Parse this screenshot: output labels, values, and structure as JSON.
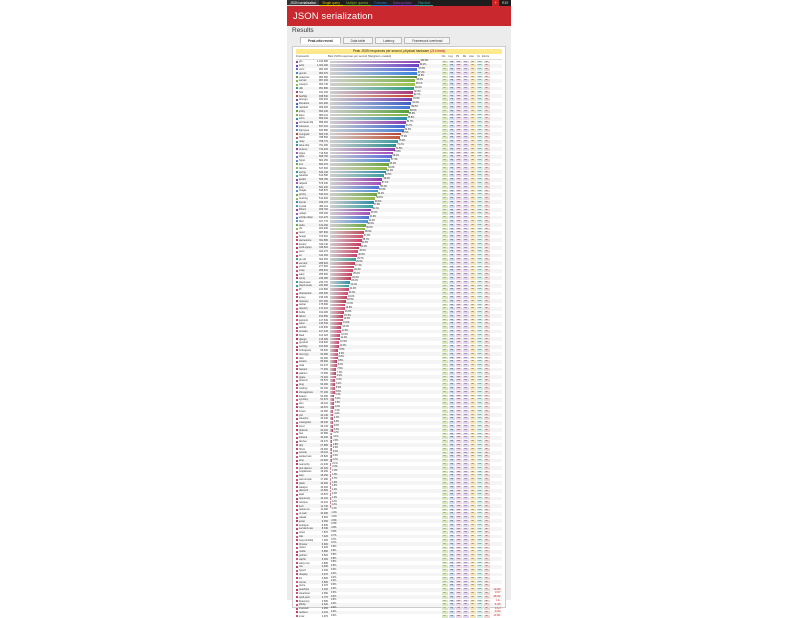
{
  "topnav": {
    "tabs": [
      {
        "label": "JSON serialization",
        "color": "#d7d7d7"
      },
      {
        "label": "Single query",
        "color": "#e0c900"
      },
      {
        "label": "Multiple queries",
        "color": "#82b526"
      },
      {
        "label": "Fortunes",
        "color": "#2e7bcf"
      },
      {
        "label": "Data updates",
        "color": "#8c44c4"
      },
      {
        "label": "Plaintext",
        "color": "#2d9c93"
      }
    ],
    "right_icon": "plus-icon",
    "right_text": "R19"
  },
  "header": {
    "title": "JSON serialization"
  },
  "results_title": "Results",
  "tabs": [
    {
      "label": "Peak-ntto reveal"
    },
    {
      "label": "Data table"
    },
    {
      "label": "Latency"
    },
    {
      "label": "Framework overhead"
    }
  ],
  "subtitle": "Peak JSON responses per second, physical hardware",
  "subtitle_note": "(214 tests)",
  "columns": [
    "Framework",
    "Best JSON responses per second (Weighted + loaded)",
    "Cls",
    "Lng",
    "Plt",
    "FE",
    "Aos",
    "IA",
    "Errors"
  ],
  "colors": {
    "header": "#c8282e",
    "nav": "#1d1d1d"
  },
  "chart_data": {
    "type": "bar",
    "title": "Peak JSON responses per second, physical hardware",
    "ylabel": "Best JSON responses per second",
    "series_name": "responses per second",
    "rows": [
      {
        "name": "gin",
        "value": 1012690,
        "pct": "100.0%",
        "color": "#8b3fb5"
      },
      {
        "name": "actix",
        "value": 1004290,
        "pct": "99.2%",
        "color": "#6a42c6"
      },
      {
        "name": "vertx",
        "value": 990180,
        "pct": "97.8%",
        "color": "#4c6be0"
      },
      {
        "name": "gemini",
        "value": 984570,
        "pct": "97.2%",
        "color": "#3b82dd"
      },
      {
        "name": "undertow",
        "value": 980380,
        "pct": "96.8%",
        "color": "#5e8f3b"
      },
      {
        "name": "servlet",
        "value": 967200,
        "pct": "95.5%",
        "color": "#7fb441"
      },
      {
        "name": "cutelyst",
        "value": 962740,
        "pct": "95.1%",
        "color": "#9ac14a"
      },
      {
        "name": "ulib",
        "value": 951880,
        "pct": "94.0%",
        "color": "#2f9e84"
      },
      {
        "name": "h2o",
        "value": 941160,
        "pct": "92.9%",
        "color": "#a83a7a"
      },
      {
        "name": "fasthttp",
        "value": 938530,
        "pct": "92.7%",
        "color": "#c3412f"
      },
      {
        "name": "atreugo",
        "value": 930400,
        "pct": "91.9%",
        "color": "#7b42b4"
      },
      {
        "name": "libreactor",
        "value": 921280,
        "pct": "91.0%",
        "color": "#3f5fc6"
      },
      {
        "name": "rapidoid",
        "value": 909480,
        "pct": "89.8%",
        "color": "#4176d4"
      },
      {
        "name": "jooby",
        "value": 894230,
        "pct": "88.3%",
        "color": "#5c9f3a"
      },
      {
        "name": "kami",
        "value": 880110,
        "pct": "86.9%",
        "color": "#7db141"
      },
      {
        "name": "echo",
        "value": 869040,
        "pct": "85.8%",
        "color": "#2c8fa8"
      },
      {
        "name": "wizzardo-http",
        "value": 858090,
        "pct": "84.7%",
        "color": "#8a3fb3"
      },
      {
        "name": "colossus",
        "value": 847310,
        "pct": "83.7%",
        "color": "#3c67d1"
      },
      {
        "name": "light-java",
        "value": 833880,
        "pct": "82.3%",
        "color": "#4a82da"
      },
      {
        "name": "mongrel2",
        "value": 805130,
        "pct": "79.5%",
        "color": "#b84333"
      },
      {
        "name": "blaze",
        "value": 788560,
        "pct": "77.9%",
        "color": "#c2573a"
      },
      {
        "name": "netty",
        "value": 768770,
        "pct": "75.9%",
        "color": "#3f9ba0"
      },
      {
        "name": "akka-http",
        "value": 751090,
        "pct": "74.2%",
        "color": "#2e8e90"
      },
      {
        "name": "proteus",
        "value": 734220,
        "pct": "72.5%",
        "color": "#8e3fb2"
      },
      {
        "name": "pippo",
        "value": 716540,
        "pct": "70.8%",
        "color": "#a24ab8"
      },
      {
        "name": "tokio",
        "value": 698760,
        "pct": "69.0%",
        "color": "#5b6bd8"
      },
      {
        "name": "hyper",
        "value": 681250,
        "pct": "67.3%",
        "color": "#4d89d6"
      },
      {
        "name": "iron",
        "value": 664070,
        "pct": "65.6%",
        "color": "#6fa43f"
      },
      {
        "name": "falcore",
        "value": 647900,
        "pct": "64.0%",
        "color": "#8fb847"
      },
      {
        "name": "spring",
        "value": 630140,
        "pct": "62.2%",
        "color": "#2b8ca6"
      },
      {
        "name": "baratine",
        "value": 612580,
        "pct": "60.5%",
        "color": "#3b9fa0"
      },
      {
        "name": "javalin",
        "value": 595780,
        "pct": "58.8%",
        "color": "#8f3caf"
      },
      {
        "name": "ratpack",
        "value": 578030,
        "pct": "57.1%",
        "color": "#a34fb9"
      },
      {
        "name": "jetty",
        "value": 561220,
        "pct": "55.4%",
        "color": "#4c72d5"
      },
      {
        "name": "finagle",
        "value": 545870,
        "pct": "53.9%",
        "color": "#4a8fd6"
      },
      {
        "name": "grizzly",
        "value": 530410,
        "pct": "52.4%",
        "color": "#6ea63f"
      },
      {
        "name": "treefrog",
        "value": 514600,
        "pct": "50.8%",
        "color": "#8dba47"
      },
      {
        "name": "kemal",
        "value": 499270,
        "pct": "49.3%",
        "color": "#2c8ca6"
      },
      {
        "name": "crystal",
        "value": 484110,
        "pct": "47.8%",
        "color": "#36a0a2"
      },
      {
        "name": "lithium",
        "value": 469700,
        "pct": "46.4%",
        "color": "#8b3cae"
      },
      {
        "name": "nodejs",
        "value": 455290,
        "pct": "45.0%",
        "color": "#a64fba"
      },
      {
        "name": "evhttp-sharp",
        "value": 441270,
        "pct": "43.6%",
        "color": "#4b6fd4"
      },
      {
        "name": "fiber",
        "value": 427770,
        "pct": "42.2%",
        "color": "#4a92d7"
      },
      {
        "name": "duda",
        "value": 414260,
        "pct": "40.9%",
        "color": "#6aa73e"
      },
      {
        "name": "chi",
        "value": 400930,
        "pct": "39.6%",
        "color": "#8bba48"
      },
      {
        "name": "revel",
        "value": 387830,
        "pct": "38.3%",
        "color": "#c24a5a"
      },
      {
        "name": "beego",
        "value": 374910,
        "pct": "37.0%",
        "color": "#cf4f6b"
      },
      {
        "name": "aspnetcore",
        "value": 361880,
        "pct": "35.7%",
        "color": "#d0416a"
      },
      {
        "name": "kestrel",
        "value": 349140,
        "pct": "34.5%",
        "color": "#c63a5d"
      },
      {
        "name": "cpoll-cppsp",
        "value": 336620,
        "pct": "33.2%",
        "color": "#b83b50"
      },
      {
        "name": "poco",
        "value": 324270,
        "pct": "32.0%",
        "color": "#d44a6e"
      },
      {
        "name": "wt",
        "value": 312300,
        "pct": "30.8%",
        "color": "#c7416a"
      },
      {
        "name": "go-std",
        "value": 300450,
        "pct": "29.7%",
        "color": "#3e9c93"
      },
      {
        "name": "servant",
        "value": 288920,
        "pct": "28.5%",
        "color": "#c2455d"
      },
      {
        "name": "yesod",
        "value": 277600,
        "pct": "27.4%",
        "color": "#cc4568"
      },
      {
        "name": "snap",
        "value": 266510,
        "pct": "26.3%",
        "color": "#d04a6c"
      },
      {
        "name": "warp",
        "value": 255690,
        "pct": "25.2%",
        "color": "#c83d5f"
      },
      {
        "name": "spray",
        "value": 245080,
        "pct": "24.2%",
        "color": "#bb3a55"
      },
      {
        "name": "play2-java",
        "value": 234770,
        "pct": "23.2%",
        "color": "#2d8fa8"
      },
      {
        "name": "play2-scala",
        "value": 224690,
        "pct": "22.2%",
        "color": "#2e9c94"
      },
      {
        "name": "lift",
        "value": 214890,
        "pct": "21.2%",
        "color": "#c9426a"
      },
      {
        "name": "dropwizard",
        "value": 205390,
        "pct": "20.3%",
        "color": "#cf4a6f"
      },
      {
        "name": "jersey",
        "value": 196190,
        "pct": "19.4%",
        "color": "#c43d5e"
      },
      {
        "name": "resteasy",
        "value": 187260,
        "pct": "18.5%",
        "color": "#b9394f"
      },
      {
        "name": "wicket",
        "value": 178690,
        "pct": "17.6%",
        "color": "#d3426c"
      },
      {
        "name": "tapestry",
        "value": 170410,
        "pct": "16.8%",
        "color": "#d84f7a"
      },
      {
        "name": "bottle",
        "value": 162480,
        "pct": "16.0%",
        "color": "#c54267"
      },
      {
        "name": "falcon",
        "value": 154850,
        "pct": "15.3%",
        "color": "#b93a59"
      },
      {
        "name": "japronto",
        "value": 147540,
        "pct": "14.6%",
        "color": "#d14c6f"
      },
      {
        "name": "sanic",
        "value": 140540,
        "pct": "13.9%",
        "color": "#c93f62"
      },
      {
        "name": "aiohttp",
        "value": 133830,
        "pct": "13.2%",
        "color": "#be3b58"
      },
      {
        "name": "tornado",
        "value": 127440,
        "pct": "12.6%",
        "color": "#d5507c"
      },
      {
        "name": "flask",
        "value": 121320,
        "pct": "12.0%",
        "color": "#c94368"
      },
      {
        "name": "django",
        "value": 115480,
        "pct": "11.4%",
        "color": "#b8395a"
      },
      {
        "name": "pyramid",
        "value": 109920,
        "pct": "10.9%",
        "color": "#d04a70"
      },
      {
        "name": "web2py",
        "value": 104590,
        "pct": "10.3%",
        "color": "#c74066"
      },
      {
        "name": "turbogears",
        "value": 99520,
        "pct": "9.8%",
        "color": "#bf3b5c"
      },
      {
        "name": "cherrypy",
        "value": 94680,
        "pct": "9.3%",
        "color": "#d3517c"
      },
      {
        "name": "rails",
        "value": 90060,
        "pct": "8.9%",
        "color": "#c5426a"
      },
      {
        "name": "sinatra",
        "value": 85660,
        "pct": "8.5%",
        "color": "#b9395a"
      },
      {
        "name": "roda",
        "value": 81470,
        "pct": "8.0%",
        "color": "#d24b72"
      },
      {
        "name": "hanami",
        "value": 77460,
        "pct": "7.6%",
        "color": "#c84068"
      },
      {
        "name": "padrino",
        "value": 73650,
        "pct": "7.3%",
        "color": "#bd3b5e"
      },
      {
        "name": "grape",
        "value": 70020,
        "pct": "6.9%",
        "color": "#d34f7b"
      },
      {
        "name": "phoenix",
        "value": 66570,
        "pct": "6.6%",
        "color": "#c7436b"
      },
      {
        "name": "plug",
        "value": 63290,
        "pct": "6.2%",
        "color": "#bb3a5c"
      },
      {
        "name": "cowboy",
        "value": 60160,
        "pct": "5.9%",
        "color": "#d14c75"
      },
      {
        "name": "chicagoboss",
        "value": 57190,
        "pct": "5.6%",
        "color": "#c6416a"
      },
      {
        "name": "laravel",
        "value": 54360,
        "pct": "5.4%",
        "color": "#bc3b5d"
      },
      {
        "name": "symfony",
        "value": 51670,
        "pct": "5.1%",
        "color": "#d34f7c"
      },
      {
        "name": "slim",
        "value": 49110,
        "pct": "4.8%",
        "color": "#c6436c"
      },
      {
        "name": "silex",
        "value": 46670,
        "pct": "4.6%",
        "color": "#bb3a5d"
      },
      {
        "name": "lumen",
        "value": 44350,
        "pct": "4.4%",
        "color": "#d14d76"
      },
      {
        "name": "yii2",
        "value": 42140,
        "pct": "4.2%",
        "color": "#c5416a"
      },
      {
        "name": "cakephp",
        "value": 40040,
        "pct": "4.0%",
        "color": "#bc3b5e"
      },
      {
        "name": "codeigniter",
        "value": 38040,
        "pct": "3.8%",
        "color": "#d34f7d"
      },
      {
        "name": "zend",
        "value": 36130,
        "pct": "3.6%",
        "color": "#c6436c"
      },
      {
        "name": "phalcon",
        "value": 34310,
        "pct": "3.4%",
        "color": "#ba3a5d"
      },
      {
        "name": "fuel",
        "value": 32580,
        "pct": "3.2%",
        "color": "#d04c77"
      },
      {
        "name": "kohana",
        "value": 30940,
        "pct": "3.1%",
        "color": "#c4416a"
      },
      {
        "name": "fat-free",
        "value": 29370,
        "pct": "2.9%",
        "color": "#bb3b5e"
      },
      {
        "name": "php",
        "value": 27880,
        "pct": "2.8%",
        "color": "#d34f7e"
      },
      {
        "name": "hhvm",
        "value": 26460,
        "pct": "2.6%",
        "color": "#c6436d"
      },
      {
        "name": "swoole",
        "value": 25110,
        "pct": "2.5%",
        "color": "#ba3a5e"
      },
      {
        "name": "workerman",
        "value": 23820,
        "pct": "2.4%",
        "color": "#d04c78"
      },
      {
        "name": "amp",
        "value": 22600,
        "pct": "2.2%",
        "color": "#c3416b"
      },
      {
        "name": "react-php",
        "value": 21430,
        "pct": "2.1%",
        "color": "#bb3b5f"
      },
      {
        "name": "perl-dancer",
        "value": 20320,
        "pct": "2.0%",
        "color": "#d24f7f"
      },
      {
        "name": "mojolicious",
        "value": 19260,
        "pct": "1.9%",
        "color": "#c6436e"
      },
      {
        "name": "kelp",
        "value": 18250,
        "pct": "1.8%",
        "color": "#ba3a5f"
      },
      {
        "name": "web-simple",
        "value": 17280,
        "pct": "1.7%",
        "color": "#cf4c79"
      },
      {
        "name": "plack",
        "value": 16360,
        "pct": "1.6%",
        "color": "#c3416c"
      },
      {
        "name": "catalyst",
        "value": 15490,
        "pct": "1.5%",
        "color": "#bb3b60"
      },
      {
        "name": "dancer2",
        "value": 14660,
        "pct": "1.4%",
        "color": "#d24f80"
      },
      {
        "name": "lapis",
        "value": 13870,
        "pct": "1.4%",
        "color": "#c6436f"
      },
      {
        "name": "openresty",
        "value": 13120,
        "pct": "1.3%",
        "color": "#b93a60"
      },
      {
        "name": "octopus",
        "value": 12410,
        "pct": "1.2%",
        "color": "#cf4c7a"
      },
      {
        "name": "luvit",
        "value": 11730,
        "pct": "1.2%",
        "color": "#c3416d"
      },
      {
        "name": "racket-ws",
        "value": 11090,
        "pct": "1.1%",
        "color": "#bb3b61"
      },
      {
        "name": "ur-web",
        "value": 10480,
        "pct": "1.0%",
        "color": "#d24f81"
      },
      {
        "name": "nawak",
        "value": 9900,
        "pct": "1.0%",
        "color": "#c64370"
      },
      {
        "name": "jester",
        "value": 9350,
        "pct": "0.9%",
        "color": "#b93a61"
      },
      {
        "name": "prologue",
        "value": 8830,
        "pct": "0.9%",
        "color": "#cf4c7b"
      },
      {
        "name": "servlet3-cass",
        "value": 8340,
        "pct": "0.8%",
        "color": "#c3416e"
      },
      {
        "name": "onion",
        "value": 7870,
        "pct": "0.8%",
        "color": "#bb3b62"
      },
      {
        "name": "tide",
        "value": 7420,
        "pct": "0.7%",
        "color": "#d24f82"
      },
      {
        "name": "may-minihttp",
        "value": 7000,
        "pct": "0.7%",
        "color": "#c64371"
      },
      {
        "name": "thruster",
        "value": 6600,
        "pct": "0.7%",
        "color": "#b93a62"
      },
      {
        "name": "nickel",
        "value": 6220,
        "pct": "0.6%",
        "color": "#cf4c7c"
      },
      {
        "name": "rouille",
        "value": 5860,
        "pct": "0.6%",
        "color": "#c3416f"
      },
      {
        "name": "gotham",
        "value": 5520,
        "pct": "0.5%",
        "color": "#bb3b63"
      },
      {
        "name": "saphir",
        "value": 5200,
        "pct": "0.5%",
        "color": "#d24f83"
      },
      {
        "name": "warp-rust",
        "value": 4890,
        "pct": "0.5%",
        "color": "#c64372"
      },
      {
        "name": "roa",
        "value": 4600,
        "pct": "0.5%",
        "color": "#b93a63"
      },
      {
        "name": "hyperf",
        "value": 4330,
        "pct": "0.4%",
        "color": "#cf4c7d"
      },
      {
        "name": "ubiquity",
        "value": 4070,
        "pct": "0.4%",
        "color": "#c34170"
      },
      {
        "name": "imi",
        "value": 3820,
        "pct": "0.4%",
        "color": "#bb3b64"
      },
      {
        "name": "comet",
        "value": 3590,
        "pct": "0.4%",
        "color": "#d24f84"
      },
      {
        "name": "pcore",
        "value": 3370,
        "pct": "0.3%",
        "color": "#c64373"
      },
      {
        "name": "peachpie",
        "value": 3160,
        "pct": "0.3%",
        "color": "#b93a64"
      },
      {
        "name": "clearsilver",
        "value": 2960,
        "pct": "0.3%",
        "color": "#cf4c7e"
      },
      {
        "name": "cpoll-pool",
        "value": 2770,
        "pct": "0.3%",
        "color": "#c34171"
      },
      {
        "name": "ffead-cpp",
        "value": 2590,
        "pct": "0.3%",
        "color": "#bb3b65"
      },
      {
        "name": "libhttp",
        "value": 2420,
        "pct": "0.2%",
        "color": "#d24f85"
      },
      {
        "name": "civetweb",
        "value": 2260,
        "pct": "0.2%",
        "color": "#c64374"
      },
      {
        "name": "restbed",
        "value": 2110,
        "pct": "0.2%",
        "color": "#b93a65"
      },
      {
        "name": "crow",
        "value": 1970,
        "pct": "0.2%",
        "color": "#cf4c7f"
      }
    ]
  },
  "tags": [
    "Plt",
    "Lng",
    "Fwk",
    "Srv",
    "Db",
    "Orm",
    "IA"
  ],
  "errors": [
    {
      "row": 139,
      "value": "14,000"
    },
    {
      "row": 140,
      "value": "1,617"
    },
    {
      "row": 141,
      "value": "28,002"
    },
    {
      "row": 142,
      "value": "1,0+"
    },
    {
      "row": 143,
      "value": "9,105"
    },
    {
      "row": 144,
      "value": "1,2+4"
    },
    {
      "row": 145,
      "value": "5,030"
    },
    {
      "row": 146,
      "value": "14,991"
    }
  ]
}
